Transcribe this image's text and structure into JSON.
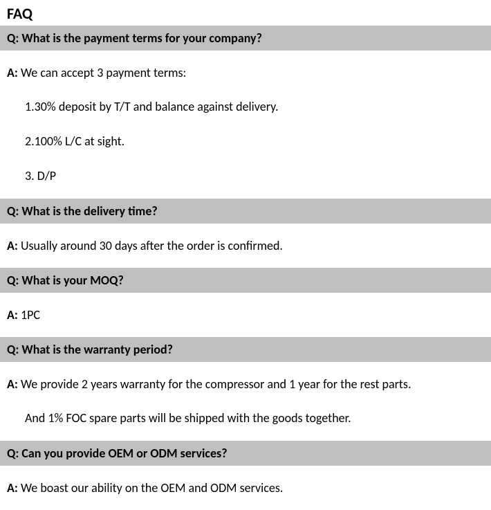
{
  "title": "FAQ",
  "q_label": "Q: ",
  "a_label": "A: ",
  "faq": [
    {
      "q": "What is the payment terms for your company?",
      "a": "We can accept 3 payment terms:",
      "items": [
        "1.30% deposit by T/T and balance against delivery.",
        "2.100% L/C at sight.",
        "3. D/P"
      ]
    },
    {
      "q": "What is the delivery time?",
      "a": "Usually around 30 days after the order is confirmed."
    },
    {
      "q": "What is your MOQ?",
      "a": "1PC"
    },
    {
      "q": "What is the warranty period?",
      "a": "We provide 2 years warranty for the compressor and 1 year for the rest parts.",
      "extra": "And 1% FOC spare parts will be shipped with the goods together."
    },
    {
      "q": "Can you provide OEM or ODM services?",
      "a": "We boast our ability on the OEM and ODM services."
    }
  ]
}
